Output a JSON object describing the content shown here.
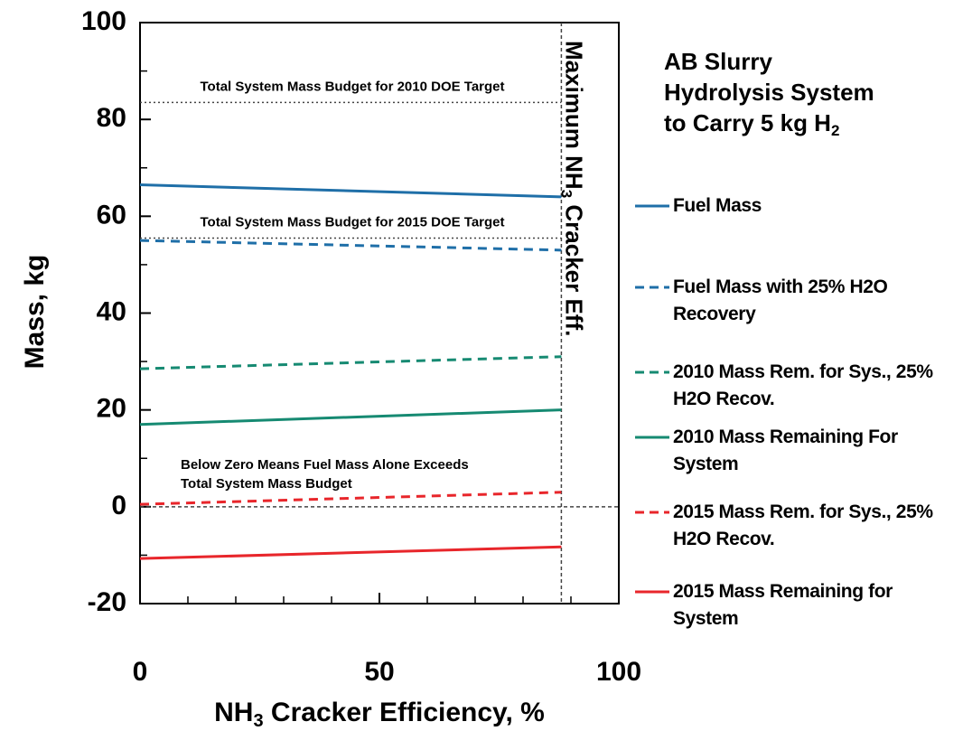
{
  "chart_data": {
    "type": "line",
    "title_lines": [
      "AB Slurry",
      "Hydrolysis System",
      "to Carry  5 kg H"
    ],
    "title_subscript": "2",
    "x_label": {
      "before": "NH",
      "sub": "3",
      "after": " Cracker Efficiency, %"
    },
    "y_label": "Mass, kg",
    "vline": {
      "value": 88,
      "before": "Maximum NH",
      "sub": "3",
      "after": " Cracker Eff."
    },
    "reference_lines": [
      {
        "value": 83.5,
        "label": "Total System Mass Budget for 2010 DOE Target"
      },
      {
        "value": 55.5,
        "label": "Total System Mass Budget for 2015 DOE Target"
      },
      {
        "value": 0
      }
    ],
    "annotation_lines": [
      "Below Zero Means Fuel Mass Alone Exceeds",
      "Total System Mass Budget"
    ],
    "x": [
      0,
      88
    ],
    "series": [
      {
        "name": "Fuel Mass",
        "color": "#1f6fa8",
        "dash": false,
        "values": [
          66.5,
          64
        ]
      },
      {
        "name": "Fuel Mass with 25% H2O Recovery",
        "color": "#1f6fa8",
        "dash": true,
        "values": [
          55,
          53
        ]
      },
      {
        "name": "2010 Mass Rem. for Sys., 25% H2O Recov.",
        "color": "#168a72",
        "dash": true,
        "values": [
          28.5,
          31
        ]
      },
      {
        "name": "2010 Mass Remaining For System",
        "color": "#168a72",
        "dash": false,
        "values": [
          17,
          20
        ]
      },
      {
        "name": "2015 Mass Rem. for Sys., 25% H2O Recov.",
        "color": "#e8262b",
        "dash": true,
        "values": [
          0.5,
          3
        ]
      },
      {
        "name": "2015 Mass Remaining for System",
        "color": "#e8262b",
        "dash": false,
        "values": [
          -10.7,
          -8.3
        ]
      }
    ],
    "xlim": [
      0,
      100
    ],
    "ylim": [
      -20,
      100
    ],
    "xticks": [
      0,
      50,
      100
    ],
    "yticks": [
      -20,
      0,
      20,
      40,
      60,
      80,
      100
    ],
    "xminor_ticks": [
      10,
      20,
      30,
      40,
      60,
      70,
      80,
      90
    ],
    "yminor_ticks": [
      -10,
      10,
      30,
      50,
      70,
      90
    ]
  }
}
